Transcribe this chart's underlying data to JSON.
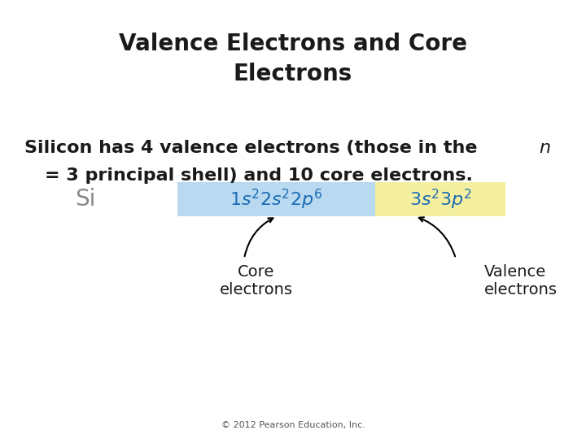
{
  "title": "Valence Electrons and Core\nElectrons",
  "body_line1a": "Silicon has 4 valence electrons (those in the ",
  "body_line1b": "n",
  "body_line2": "= 3 principal shell) and 10 core electrons.",
  "si_label": "Si",
  "core_formula": "$1s^22s^22p^6$",
  "valence_formula": "$3s^23p^2$",
  "core_label": "Core\nelectrons",
  "valence_label": "Valence\nelectrons",
  "core_box_color": "#b8d9f0",
  "valence_box_color": "#f5f0a0",
  "background_color": "#ffffff",
  "copyright": "© 2012 Pearson Education, Inc.",
  "title_fontsize": 20,
  "body_fontsize": 16,
  "formula_fontsize": 16,
  "label_fontsize": 14,
  "si_fontsize": 20,
  "copyright_fontsize": 8,
  "text_color": "#1a1a1a"
}
